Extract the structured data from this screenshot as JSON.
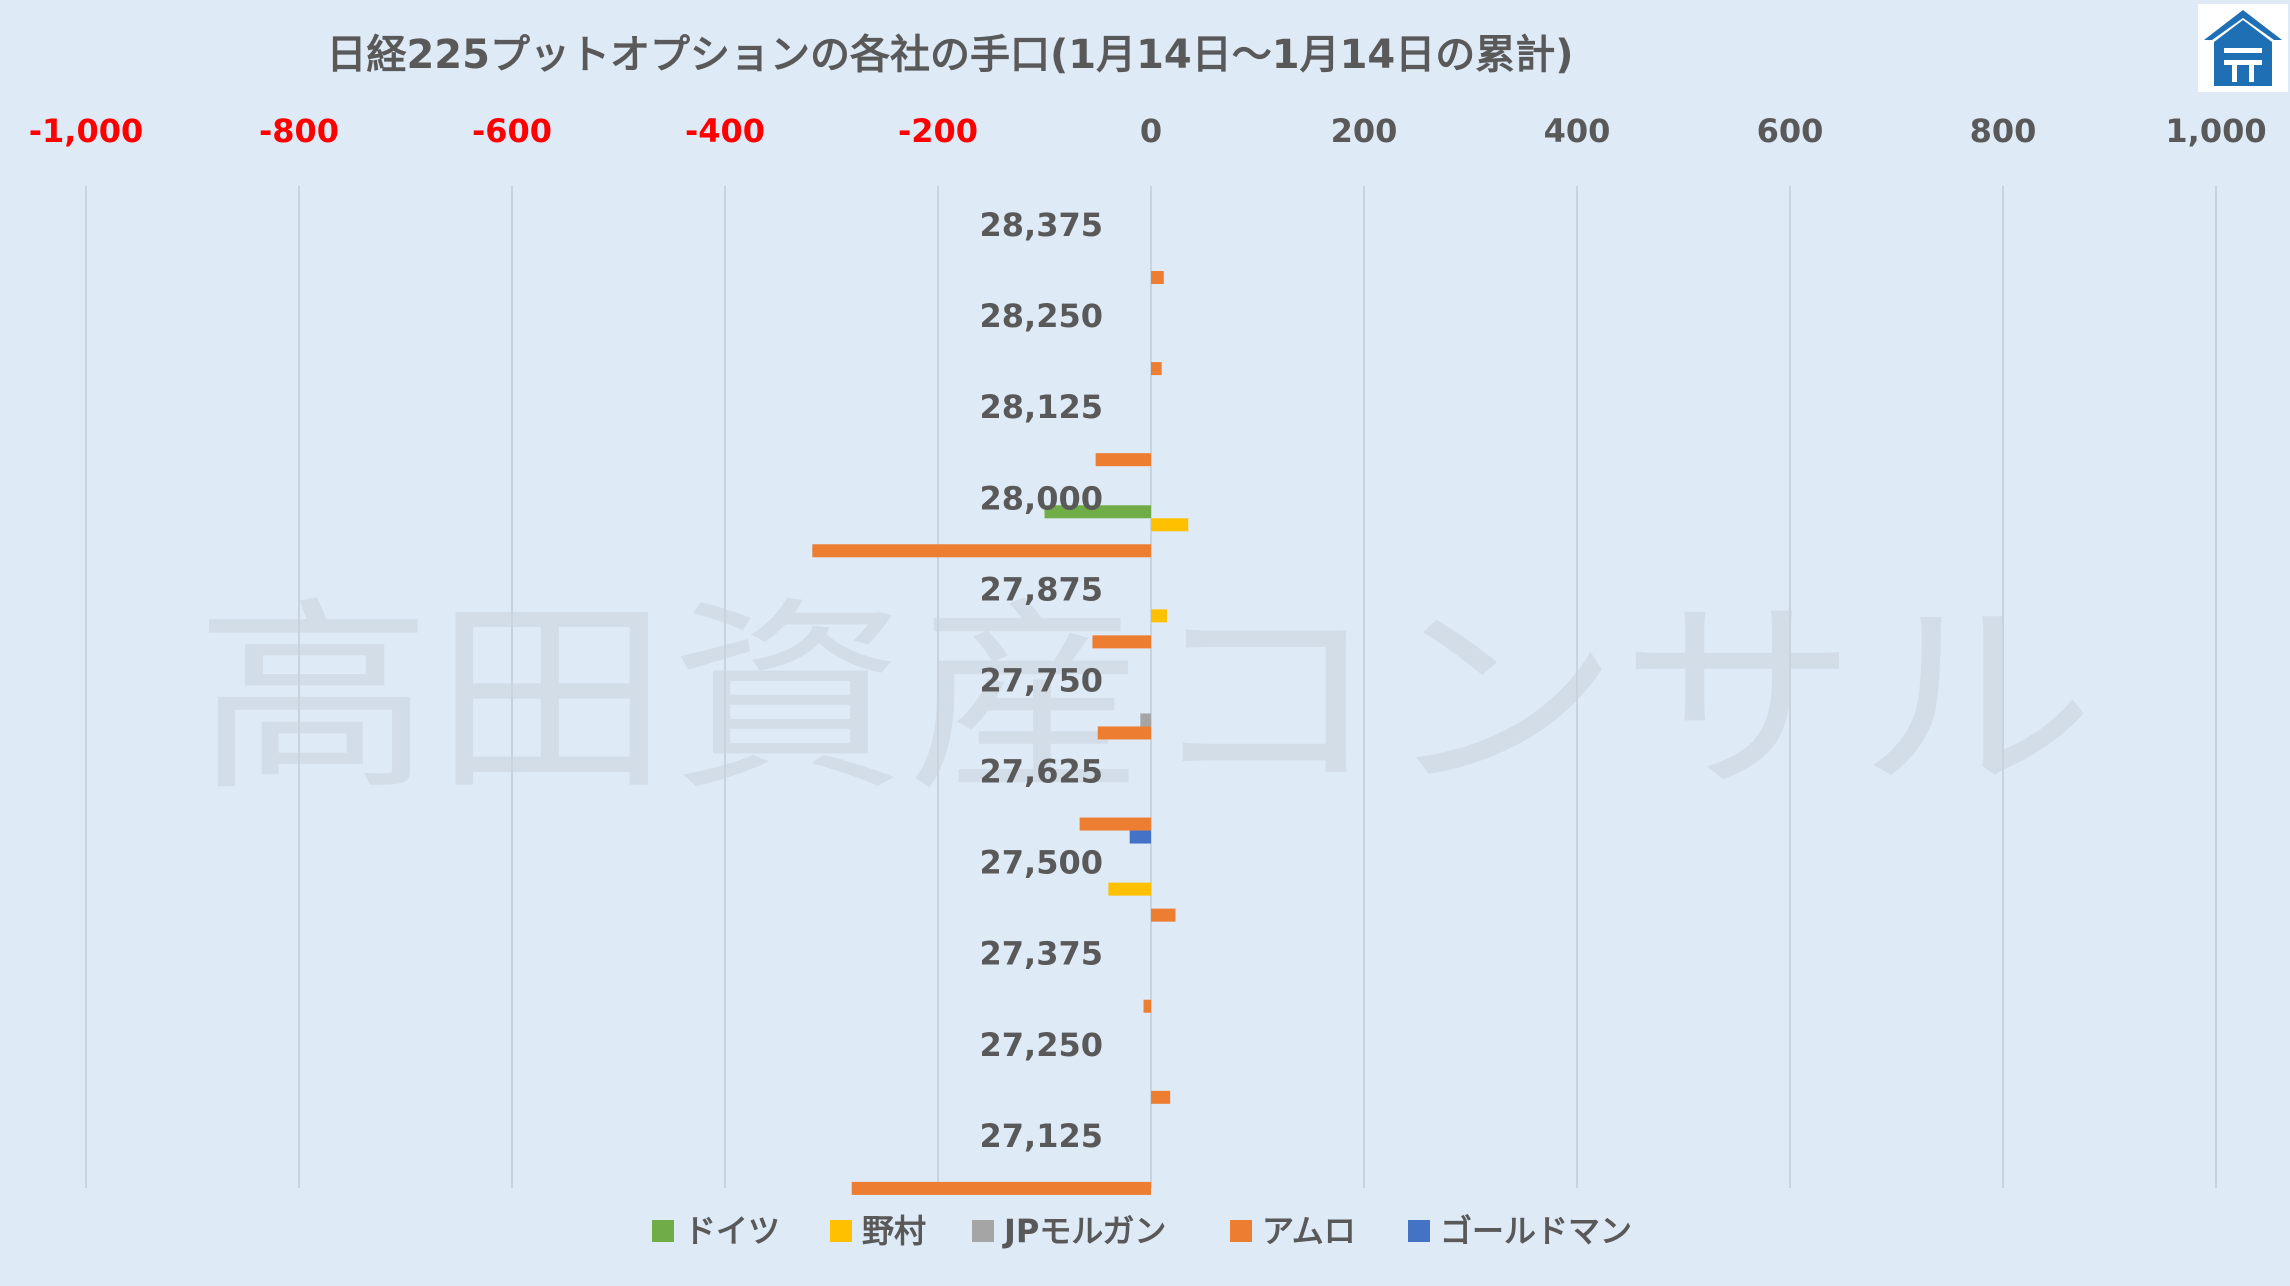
{
  "chart_data": {
    "type": "bar",
    "orientation": "horizontal",
    "title": "日経225プットオプションの各社の手口(1月14日～1月14日の累計)",
    "watermark": "高田資産コンサル",
    "xlim": [
      -1000,
      1000
    ],
    "x_ticks": [
      {
        "value": -1000,
        "label": "-1,000"
      },
      {
        "value": -800,
        "label": "-800"
      },
      {
        "value": -600,
        "label": "-600"
      },
      {
        "value": -400,
        "label": "-400"
      },
      {
        "value": -200,
        "label": "-200"
      },
      {
        "value": 0,
        "label": "0"
      },
      {
        "value": 200,
        "label": "200"
      },
      {
        "value": 400,
        "label": "400"
      },
      {
        "value": 600,
        "label": "600"
      },
      {
        "value": 800,
        "label": "800"
      },
      {
        "value": 1000,
        "label": "1,000"
      }
    ],
    "negative_tick_color": "#ff0000",
    "positive_tick_color": "#595959",
    "grid": true,
    "legend_position": "bottom",
    "categories": [
      "28,375",
      "28,250",
      "28,125",
      "28,000",
      "27,875",
      "27,750",
      "27,625",
      "27,500",
      "27,375",
      "27,250",
      "27,125"
    ],
    "series": [
      {
        "name": "ドイツ",
        "color": "#70ad47",
        "values": [
          0,
          0,
          0,
          -100,
          0,
          0,
          0,
          0,
          0,
          0,
          0
        ]
      },
      {
        "name": "野村",
        "color": "#ffc000",
        "values": [
          0,
          0,
          0,
          35,
          15,
          0,
          0,
          -40,
          0,
          0,
          0
        ]
      },
      {
        "name": "JPモルガン",
        "color": "#a5a5a5",
        "values": [
          0,
          0,
          0,
          0,
          0,
          -10,
          0,
          0,
          0,
          0,
          0
        ]
      },
      {
        "name": "アムロ",
        "color": "#ed7d31",
        "values": [
          12,
          10,
          -52,
          -318,
          -55,
          -50,
          -67,
          23,
          -7,
          18,
          -281
        ]
      },
      {
        "name": "ゴールドマン",
        "color": "#4472c4",
        "values": [
          0,
          0,
          0,
          0,
          0,
          0,
          -20,
          0,
          0,
          0,
          0
        ]
      }
    ]
  },
  "logo": {
    "icon": "house-logo-icon",
    "bg_color": "#ffffff",
    "fg_color": "#1f6fb5"
  }
}
